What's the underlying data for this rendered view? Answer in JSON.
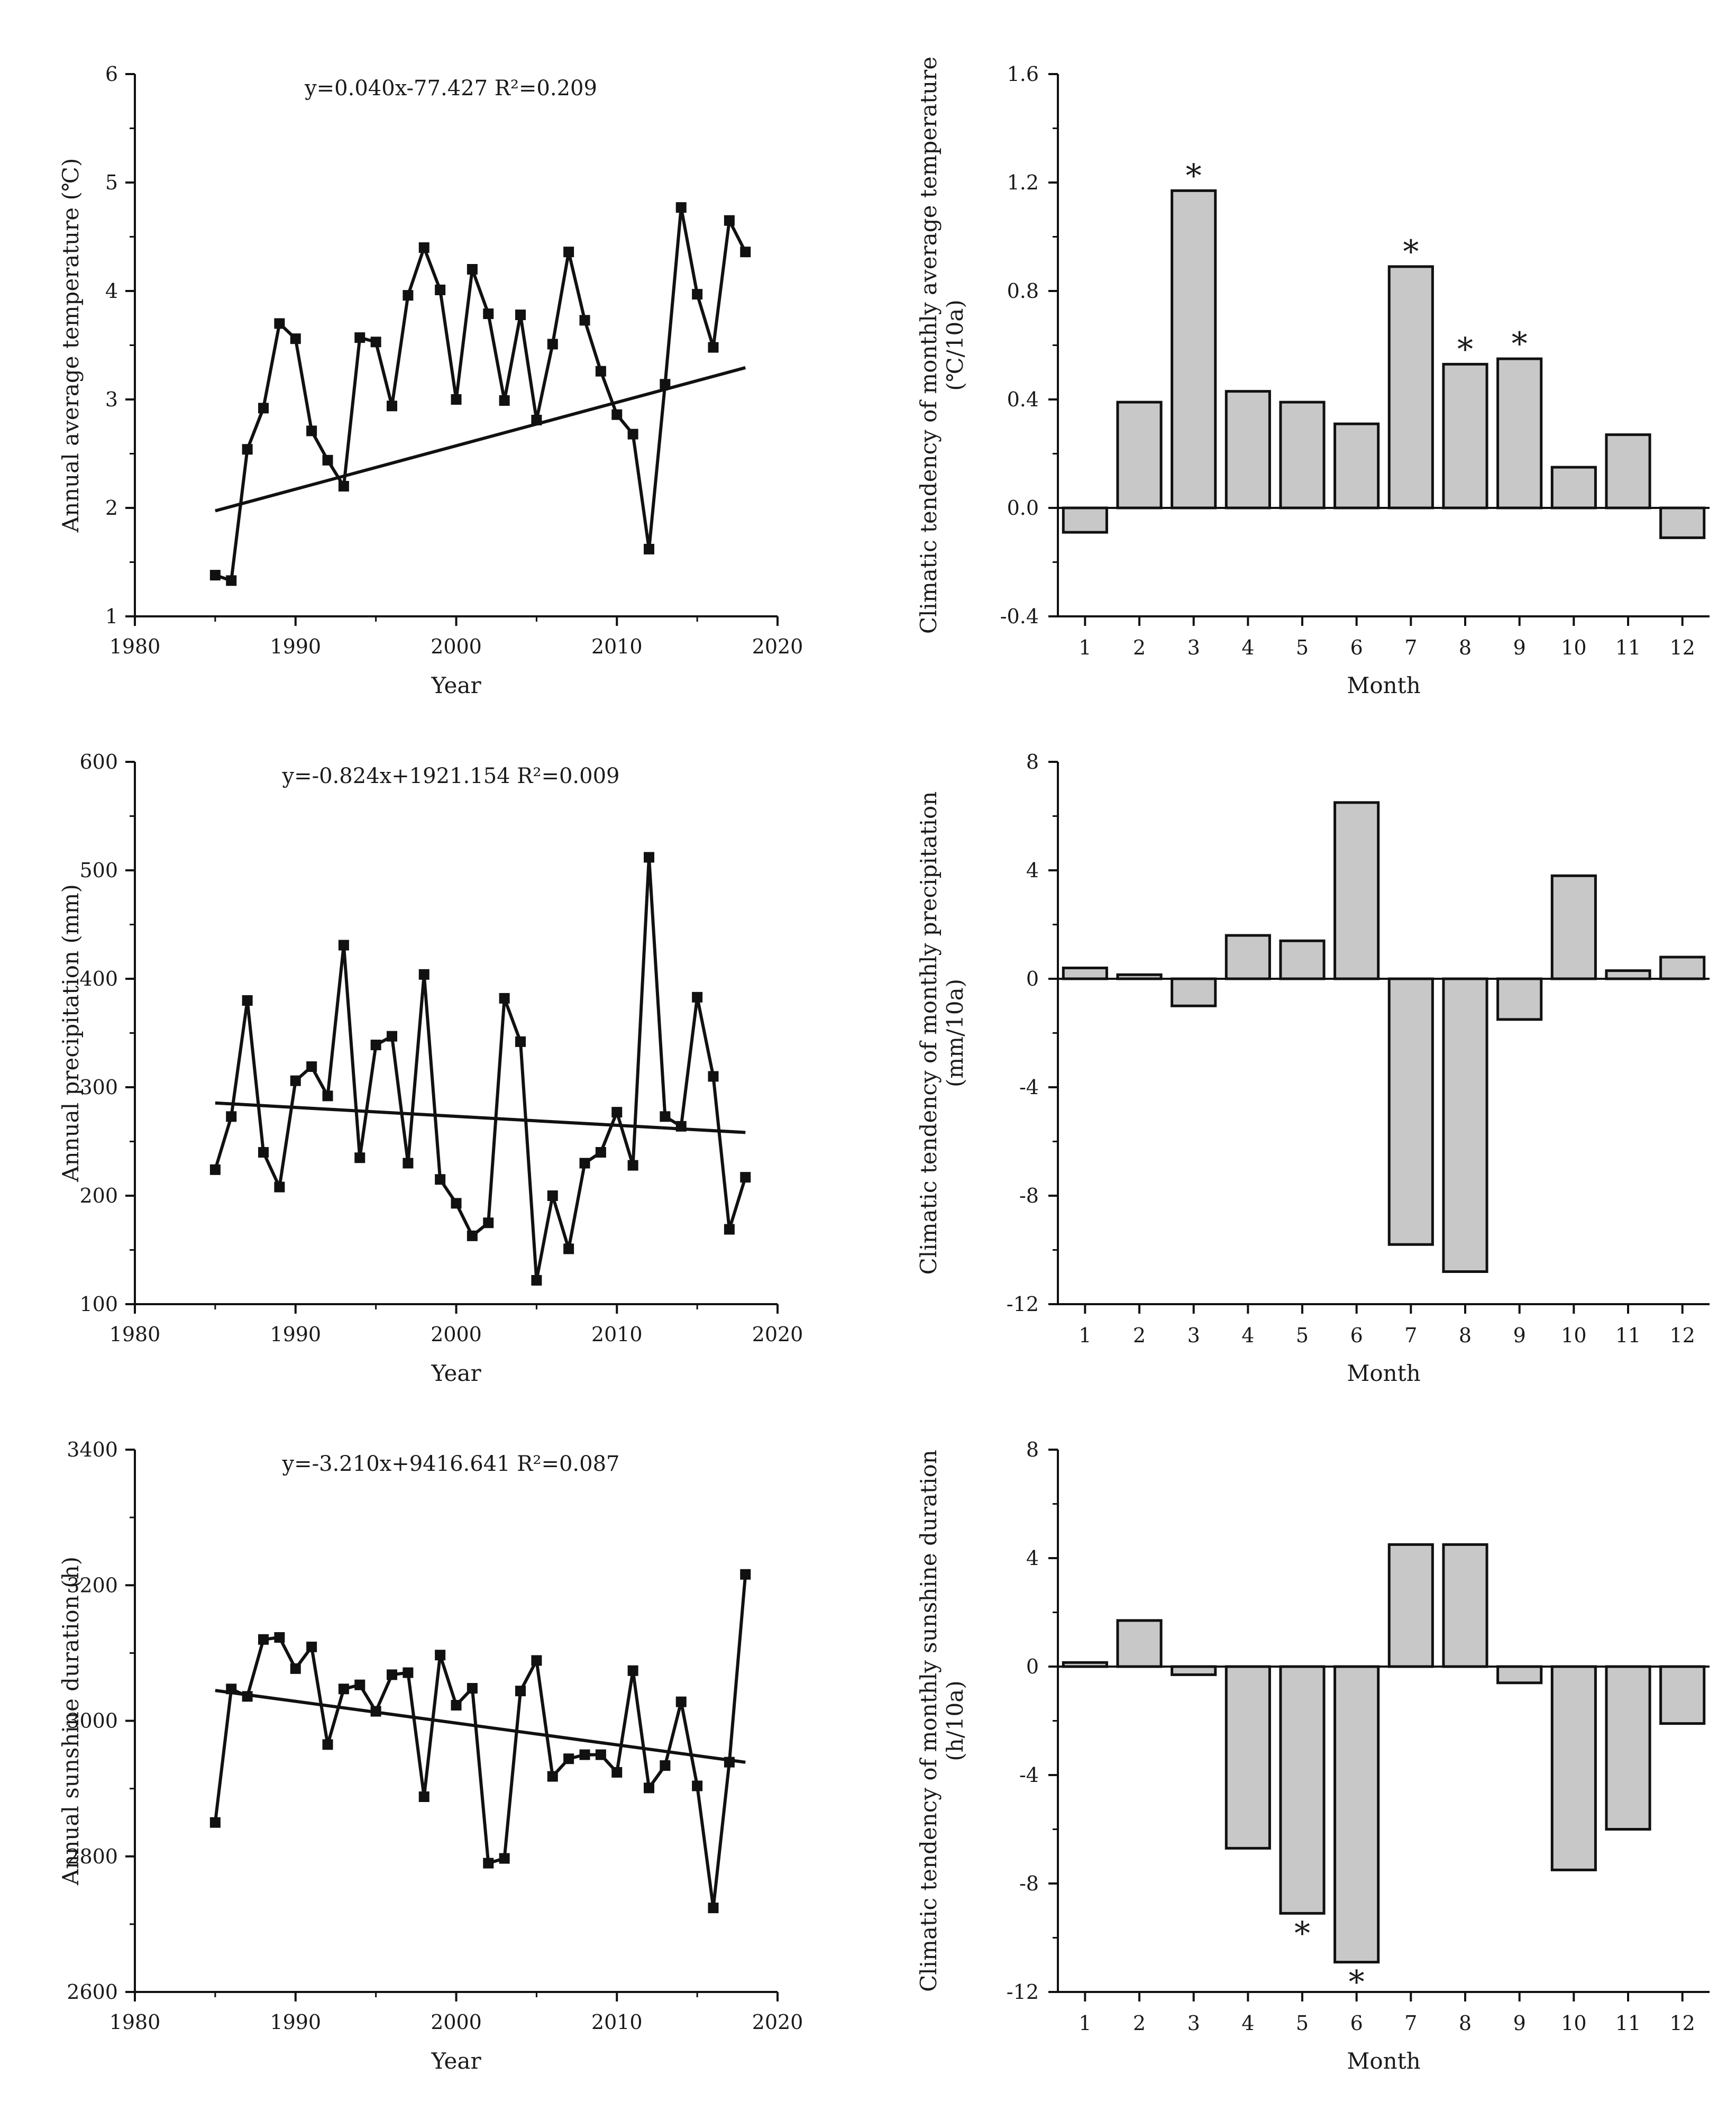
{
  "chart_data": [
    {
      "id": "temp-line",
      "type": "line",
      "title": "",
      "xlabel": "Year",
      "ylabel": "Annual average temperature (℃)",
      "xlim": [
        1980,
        2020
      ],
      "ylim": [
        1,
        6
      ],
      "xticks": [
        1980,
        1990,
        2000,
        2010,
        2020
      ],
      "yticks": [
        1,
        2,
        3,
        4,
        5,
        6
      ],
      "equation": "y=0.040x-77.427 R²=0.209",
      "trend": {
        "slope": 0.04,
        "intercept": -77.427
      },
      "x": [
        1985,
        1986,
        1987,
        1988,
        1989,
        1990,
        1991,
        1992,
        1993,
        1994,
        1995,
        1996,
        1997,
        1998,
        1999,
        2000,
        2001,
        2002,
        2003,
        2004,
        2005,
        2006,
        2007,
        2008,
        2009,
        2010,
        2011,
        2012,
        2013,
        2014,
        2015,
        2016,
        2017,
        2018
      ],
      "values": [
        1.38,
        1.33,
        2.54,
        2.92,
        3.7,
        3.56,
        2.71,
        2.44,
        2.2,
        3.57,
        3.53,
        2.94,
        3.96,
        4.4,
        4.01,
        3.0,
        4.2,
        3.79,
        2.99,
        3.78,
        2.81,
        3.51,
        4.36,
        3.73,
        3.26,
        2.86,
        2.68,
        1.62,
        3.14,
        4.77,
        3.97,
        3.48,
        4.65,
        4.36
      ]
    },
    {
      "id": "temp-bar",
      "type": "bar",
      "title": "",
      "xlabel": "Month",
      "ylabel": "Climatic tendency of monthly average temperature (℃/10a)",
      "ylim": [
        -0.4,
        1.6
      ],
      "yticks": [
        "-0.4",
        "0.0",
        "0.4",
        "0.8",
        "1.2",
        "1.6"
      ],
      "categories": [
        "1",
        "2",
        "3",
        "4",
        "5",
        "6",
        "7",
        "8",
        "9",
        "10",
        "11",
        "12"
      ],
      "values": [
        -0.09,
        0.39,
        1.17,
        0.43,
        0.39,
        0.31,
        0.89,
        0.53,
        0.55,
        0.15,
        0.27,
        -0.11
      ],
      "significant": [
        false,
        false,
        true,
        false,
        false,
        false,
        true,
        true,
        true,
        false,
        false,
        false
      ],
      "significance_marker": "*"
    },
    {
      "id": "precip-line",
      "type": "line",
      "title": "",
      "xlabel": "Year",
      "ylabel": "Annual precipitation (mm)",
      "xlim": [
        1980,
        2020
      ],
      "ylim": [
        100,
        600
      ],
      "xticks": [
        1980,
        1990,
        2000,
        2010,
        2020
      ],
      "yticks": [
        100,
        200,
        300,
        400,
        500,
        600
      ],
      "equation": "y=-0.824x+1921.154 R²=0.009",
      "trend": {
        "slope": -0.824,
        "intercept": 1921.154
      },
      "x": [
        1985,
        1986,
        1987,
        1988,
        1989,
        1990,
        1991,
        1992,
        1993,
        1994,
        1995,
        1996,
        1997,
        1998,
        1999,
        2000,
        2001,
        2002,
        2003,
        2004,
        2005,
        2006,
        2007,
        2008,
        2009,
        2010,
        2011,
        2012,
        2013,
        2014,
        2015,
        2016,
        2017,
        2018
      ],
      "values": [
        224,
        273,
        380,
        240,
        208,
        306,
        319,
        292,
        431,
        235,
        339,
        347,
        230,
        404,
        215,
        193,
        163,
        175,
        382,
        342,
        122,
        200,
        151,
        230,
        240,
        277,
        228,
        512,
        273,
        264,
        383,
        310,
        169,
        217
      ]
    },
    {
      "id": "precip-bar",
      "type": "bar",
      "title": "",
      "xlabel": "Month",
      "ylabel": "Climatic tendency of monthly precipitation (mm/10a)",
      "ylim": [
        -12,
        8
      ],
      "yticks": [
        "-12",
        "-8",
        "-4",
        "0",
        "4",
        "8"
      ],
      "categories": [
        "1",
        "2",
        "3",
        "4",
        "5",
        "6",
        "7",
        "8",
        "9",
        "10",
        "11",
        "12"
      ],
      "values": [
        0.4,
        0.15,
        -1.0,
        1.6,
        1.4,
        6.5,
        -9.8,
        -10.8,
        -1.5,
        3.8,
        0.3,
        0.8
      ],
      "significant": [
        false,
        false,
        false,
        false,
        false,
        false,
        false,
        false,
        false,
        false,
        false,
        false
      ],
      "significance_marker": "*"
    },
    {
      "id": "sun-line",
      "type": "line",
      "title": "",
      "xlabel": "Year",
      "ylabel": "Annual sunshine duration (h)",
      "xlim": [
        1980,
        2020
      ],
      "ylim": [
        2600,
        3400
      ],
      "xticks": [
        1980,
        1990,
        2000,
        2010,
        2020
      ],
      "yticks": [
        2600,
        2800,
        3000,
        3200,
        3400
      ],
      "equation": "y=-3.210x+9416.641 R²=0.087",
      "trend": {
        "slope": -3.21,
        "intercept": 9416.641
      },
      "x": [
        1985,
        1986,
        1987,
        1988,
        1989,
        1990,
        1991,
        1992,
        1993,
        1994,
        1995,
        1996,
        1997,
        1998,
        1999,
        2000,
        2001,
        2002,
        2003,
        2004,
        2005,
        2006,
        2007,
        2008,
        2009,
        2010,
        2011,
        2012,
        2013,
        2014,
        2015,
        2016,
        2017,
        2018
      ],
      "values": [
        2850,
        3047,
        3036,
        3120,
        3123,
        3077,
        3109,
        2965,
        3047,
        3053,
        3014,
        3068,
        3071,
        2888,
        3097,
        3023,
        3048,
        2790,
        2797,
        3044,
        3089,
        2918,
        2944,
        2950,
        2950,
        2924,
        3074,
        2901,
        2934,
        3028,
        2904,
        2724,
        2939,
        3216
      ]
    },
    {
      "id": "sun-bar",
      "type": "bar",
      "title": "",
      "xlabel": "Month",
      "ylabel": "Climatic tendency of monthly sunshine duration (h/10a)",
      "ylim": [
        -12,
        8
      ],
      "yticks": [
        "-12",
        "-8",
        "-4",
        "0",
        "4",
        "8"
      ],
      "categories": [
        "1",
        "2",
        "3",
        "4",
        "5",
        "6",
        "7",
        "8",
        "9",
        "10",
        "11",
        "12"
      ],
      "values": [
        0.15,
        1.7,
        -0.3,
        -6.7,
        -9.1,
        -10.9,
        4.5,
        4.5,
        -0.6,
        -7.5,
        -6.0,
        -2.1
      ],
      "significant": [
        false,
        false,
        false,
        false,
        true,
        true,
        false,
        false,
        false,
        false,
        false,
        false
      ],
      "significance_marker": "*"
    }
  ]
}
